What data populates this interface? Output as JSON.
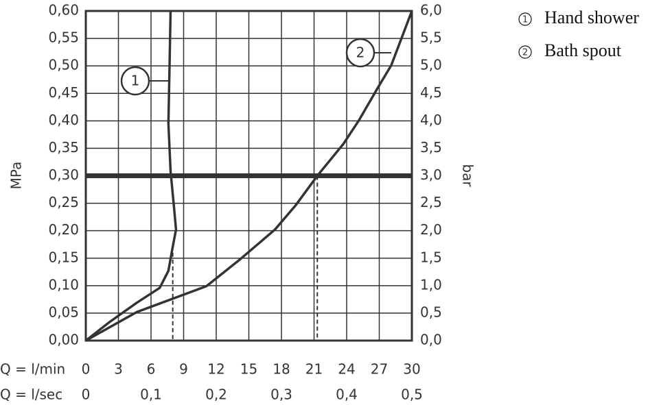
{
  "chart_data": {
    "type": "line",
    "xlabel": "Q = l/min",
    "x2label": "Q = l/sec",
    "ylabel": "MPa",
    "y2label": "bar",
    "xlim": [
      0,
      30
    ],
    "xticks": [
      0,
      3,
      6,
      9,
      12,
      15,
      18,
      21,
      24,
      27,
      30
    ],
    "x2lim": [
      0,
      0.5
    ],
    "x2ticks": [
      0,
      {
        "value": 0.1,
        "label": "0,1"
      },
      {
        "value": 0.2,
        "label": "0,2"
      },
      {
        "value": 0.3,
        "label": "0,3"
      },
      {
        "value": 0.4,
        "label": "0,4"
      },
      {
        "value": 0.5,
        "label": "0,5"
      }
    ],
    "ylim": [
      0,
      0.6
    ],
    "yticks": [
      {
        "value": 0,
        "label": "0,00"
      },
      {
        "value": 0.05,
        "label": "0,05"
      },
      {
        "value": 0.1,
        "label": "0,10"
      },
      {
        "value": 0.15,
        "label": "0,15"
      },
      {
        "value": 0.2,
        "label": "0,20"
      },
      {
        "value": 0.25,
        "label": "0,25"
      },
      {
        "value": 0.3,
        "label": "0,30"
      },
      {
        "value": 0.35,
        "label": "0,35"
      },
      {
        "value": 0.4,
        "label": "0,40"
      },
      {
        "value": 0.45,
        "label": "0,45"
      },
      {
        "value": 0.5,
        "label": "0,50"
      },
      {
        "value": 0.55,
        "label": "0,55"
      },
      {
        "value": 0.6,
        "label": "0,60"
      }
    ],
    "y2lim": [
      0,
      6
    ],
    "y2ticks": [
      {
        "value": 0,
        "label": "0,0"
      },
      {
        "value": 0.5,
        "label": "0,5"
      },
      {
        "value": 1,
        "label": "1,0"
      },
      {
        "value": 1.5,
        "label": "1,5"
      },
      {
        "value": 2,
        "label": "2,0"
      },
      {
        "value": 2.5,
        "label": "2,5"
      },
      {
        "value": 3,
        "label": "3,0"
      },
      {
        "value": 3.5,
        "label": "3,5"
      },
      {
        "value": 4,
        "label": "4,0"
      },
      {
        "value": 4.5,
        "label": "4,5"
      },
      {
        "value": 5,
        "label": "5,0"
      },
      {
        "value": 5.5,
        "label": "5,5"
      },
      {
        "value": 6,
        "label": "6,0"
      }
    ],
    "grid": true,
    "reference_line": {
      "y": 0.3
    },
    "drop_lines": [
      {
        "x": 8,
        "y": 0.16
      },
      {
        "x": 21.3,
        "y": 0.3
      }
    ],
    "series": [
      {
        "name": "Hand shower",
        "label": "1",
        "color": "#333333",
        "x": [
          0,
          2.2,
          4.7,
          6.8,
          7.6,
          8.0,
          8.3,
          8.1,
          7.8,
          7.6,
          7.7,
          7.8
        ],
        "values": [
          0,
          0.034,
          0.069,
          0.096,
          0.127,
          0.171,
          0.202,
          0.246,
          0.308,
          0.395,
          0.495,
          0.6
        ]
      },
      {
        "name": "Bath spout",
        "label": "2",
        "color": "#333333",
        "x": [
          0,
          4.7,
          11.1,
          14.2,
          17.4,
          19.3,
          21.3,
          23.7,
          25.1,
          26.8,
          28.1,
          30
        ],
        "values": [
          0,
          0.052,
          0.099,
          0.148,
          0.202,
          0.246,
          0.3,
          0.358,
          0.4,
          0.458,
          0.501,
          0.6
        ]
      }
    ]
  }
}
